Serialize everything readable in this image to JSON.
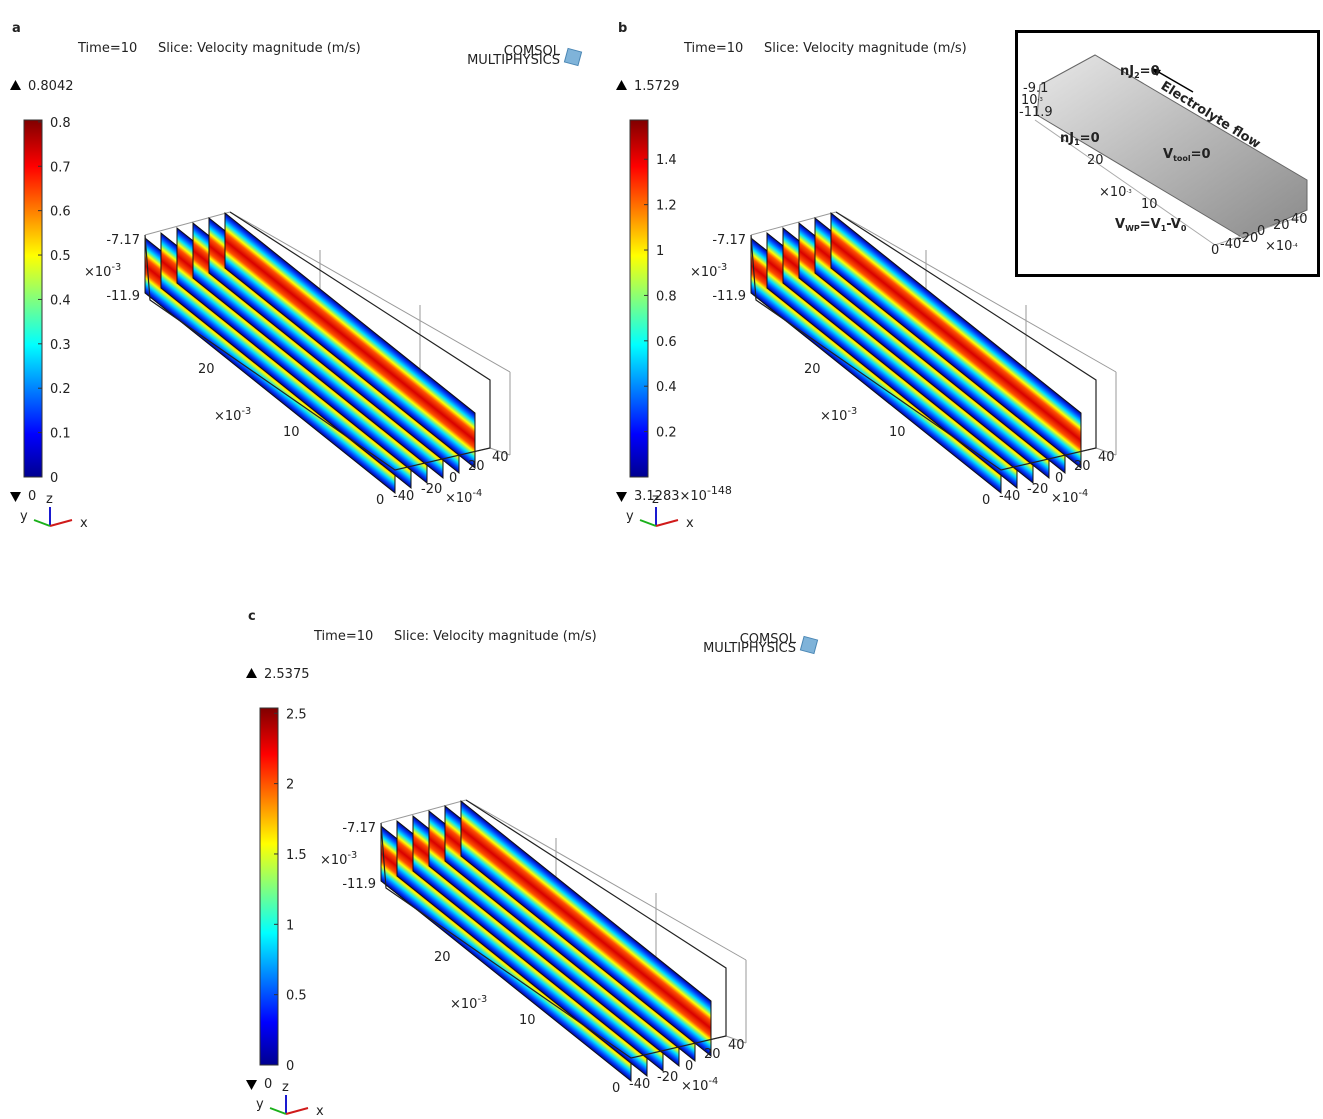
{
  "panels": [
    {
      "label": "a",
      "time": "Time=10",
      "title": "Slice: Velocity magnitude (m/s)",
      "watermark": [
        "COMSOL",
        "MULTIPHYSICS"
      ],
      "max": 0.8042,
      "min": 0,
      "ticks": [
        0,
        0.1,
        0.2,
        0.3,
        0.4,
        0.5,
        0.6,
        0.7,
        0.8
      ],
      "z_ticks": [
        "-7.17",
        "-11.9"
      ],
      "z_power": {
        "base": "×10",
        "exp": "-3"
      },
      "y_ticks": [
        "20",
        "10",
        "0"
      ],
      "y_power": {
        "base": "×10",
        "exp": "-3"
      },
      "x_ticks": [
        "-40",
        "-20",
        "0",
        "20",
        "40"
      ],
      "x_power": {
        "base": "×10",
        "exp": "-4"
      },
      "triad": [
        "y",
        "z",
        "x"
      ]
    },
    {
      "label": "b",
      "time": "Time=10",
      "title": "Slice: Velocity magnitude (m/s)",
      "max": 1.5729,
      "min": {
        "value": 3.1283e-148,
        "label": "3.1283",
        "power": {
          "base": "×10",
          "exp": "-148"
        }
      },
      "ticks": [
        0.2,
        0.4,
        0.6,
        0.8,
        1,
        1.2,
        1.4
      ],
      "z_ticks": [
        "-7.17",
        "-11.9"
      ],
      "z_power": {
        "base": "×10",
        "exp": "-3"
      },
      "y_ticks": [
        "20",
        "10",
        "0"
      ],
      "y_power": {
        "base": "×10",
        "exp": "-3"
      },
      "x_ticks": [
        "-40",
        "-20",
        "0",
        "20",
        "40"
      ],
      "x_power": {
        "base": "×10",
        "exp": "-4"
      },
      "triad": [
        "y",
        "z",
        "x"
      ]
    },
    {
      "label": "c",
      "time": "Time=10",
      "title": "Slice: Velocity magnitude (m/s)",
      "watermark": [
        "COMSOL",
        "MULTIPHYSICS"
      ],
      "max": 2.5375,
      "min": 0,
      "ticks": [
        0,
        0.5,
        1,
        1.5,
        2,
        2.5
      ],
      "z_ticks": [
        "-7.17",
        "-11.9"
      ],
      "z_power": {
        "base": "×10",
        "exp": "-3"
      },
      "y_ticks": [
        "20",
        "10",
        "0"
      ],
      "y_power": {
        "base": "×10",
        "exp": "-3"
      },
      "x_ticks": [
        "-40",
        "-20",
        "0",
        "20",
        "40"
      ],
      "x_power": {
        "base": "×10",
        "exp": "-4"
      },
      "triad": [
        "y",
        "z",
        "x"
      ]
    }
  ],
  "inset": {
    "labels": [
      {
        "parts": [
          "nJ",
          "2",
          "=0"
        ]
      },
      {
        "parts": [
          "Electrolyte flow"
        ]
      },
      {
        "parts": [
          "nJ",
          "1",
          "=0"
        ]
      },
      {
        "parts": [
          "V",
          "tool",
          "=0"
        ]
      },
      {
        "parts": [
          "V",
          "WP",
          "=V",
          "1",
          "-V",
          "0"
        ]
      }
    ],
    "ticks": [
      "-9.1",
      "-11.9",
      "20",
      "10",
      "0",
      "-40",
      "-20",
      "0",
      "20",
      "40"
    ],
    "powers": [
      [
        "10",
        "-3"
      ],
      [
        "×10",
        "-3"
      ],
      [
        "×10",
        "-4"
      ]
    ]
  }
}
